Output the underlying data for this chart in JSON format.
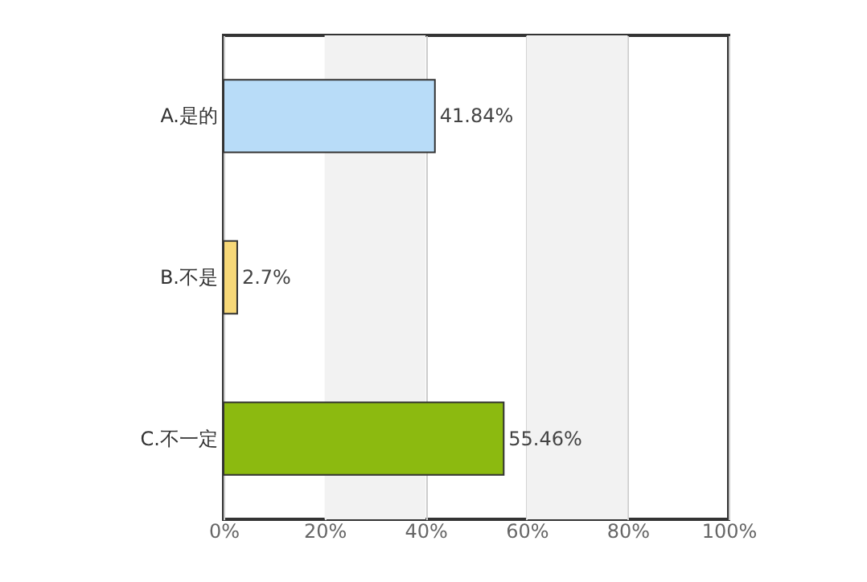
{
  "chart_data": {
    "type": "bar",
    "orientation": "horizontal",
    "categories": [
      "A.是的",
      "B.不是",
      "C.不一定"
    ],
    "values": [
      41.84,
      2.7,
      55.46
    ],
    "colors": [
      "#b8dcf8",
      "#f7d878",
      "#8cba10"
    ],
    "value_labels": [
      "41.84%",
      "2.7%",
      "55.46%"
    ],
    "xlim": [
      0,
      100
    ],
    "xticks": [
      {
        "value": 0,
        "label": "0%"
      },
      {
        "value": 20,
        "label": "20%"
      },
      {
        "value": 40,
        "label": "40%"
      },
      {
        "value": 60,
        "label": "60%"
      },
      {
        "value": 80,
        "label": "80%"
      },
      {
        "value": 100,
        "label": "100%"
      }
    ],
    "bands": [
      {
        "axis": "x",
        "from": 20,
        "to": 40,
        "color": "#f2f2f2"
      },
      {
        "axis": "x",
        "from": 60,
        "to": 80,
        "color": "#f2f2f2"
      }
    ],
    "grid": "x"
  }
}
